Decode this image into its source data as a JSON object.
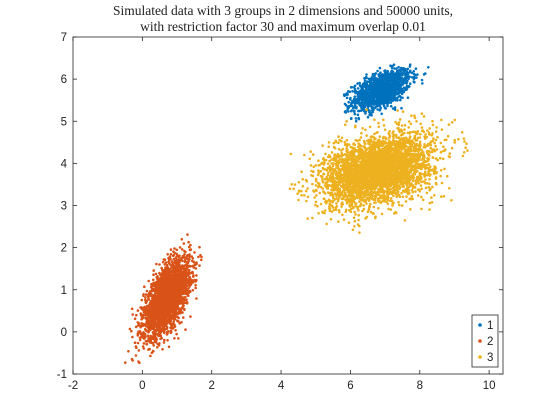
{
  "chart_data": {
    "type": "scatter",
    "title": [
      "Simulated data with 3 groups in 2 dimensions and 50000 units,",
      "with restriction factor 30 and maximum overlap 0.01"
    ],
    "xlabel": "",
    "ylabel": "",
    "xlim": [
      -2,
      10.4
    ],
    "ylim": [
      -1,
      7
    ],
    "xticks": [
      -2,
      0,
      2,
      4,
      6,
      8,
      10
    ],
    "yticks": [
      -1,
      0,
      1,
      2,
      3,
      4,
      5,
      6,
      7
    ],
    "grid": false,
    "legend_position": "bottom-right",
    "series": [
      {
        "name": "1",
        "color": "#0072BD",
        "center": [
          6.9,
          5.75
        ],
        "spread": [
          0.42,
          0.25
        ],
        "correlation": 0.55,
        "bounds": {
          "x": [
            5.8,
            8.3
          ],
          "y": [
            5.0,
            6.35
          ]
        },
        "count": 1300
      },
      {
        "name": "2",
        "color": "#D95319",
        "center": [
          0.7,
          0.8
        ],
        "spread": [
          0.33,
          0.45
        ],
        "correlation": 0.62,
        "bounds": {
          "x": [
            -0.6,
            2.0
          ],
          "y": [
            -0.75,
            2.45
          ]
        },
        "count": 2600
      },
      {
        "name": "3",
        "color": "#EDB120",
        "center": [
          6.8,
          3.85
        ],
        "spread": [
          0.78,
          0.42
        ],
        "correlation": 0.35,
        "bounds": {
          "x": [
            3.9,
            9.7
          ],
          "y": [
            2.1,
            5.35
          ]
        },
        "count": 3600
      }
    ]
  }
}
